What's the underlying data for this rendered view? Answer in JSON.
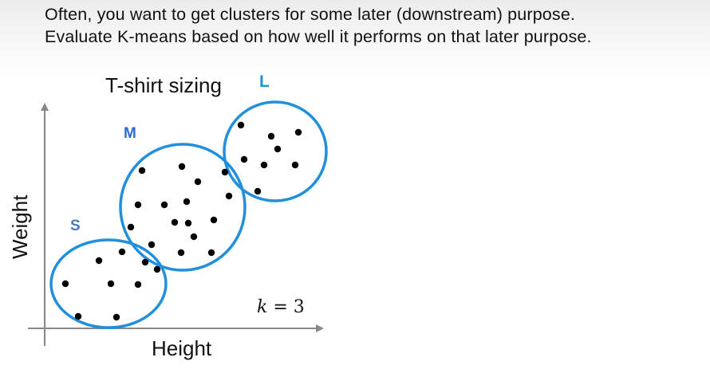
{
  "captions": [
    "Often, you want to get clusters for some later (downstream) purpose.",
    "Evaluate K-means based on how well it performs on that later purpose."
  ],
  "diagram": {
    "title": "T-shirt sizing",
    "x_axis_label": "Height",
    "y_axis_label": "Weight",
    "k_label_var": "k",
    "k_label_rest": " = 3",
    "clusters": [
      {
        "label": "S"
      },
      {
        "label": "M"
      },
      {
        "label": "L"
      }
    ],
    "colors": {
      "ellipse": "#1f8fde",
      "label_s": "#4a78c2",
      "label_m": "#2f68d8",
      "label_l": "#1f8fde",
      "dot": "#000000",
      "axis": "#888888"
    }
  }
}
